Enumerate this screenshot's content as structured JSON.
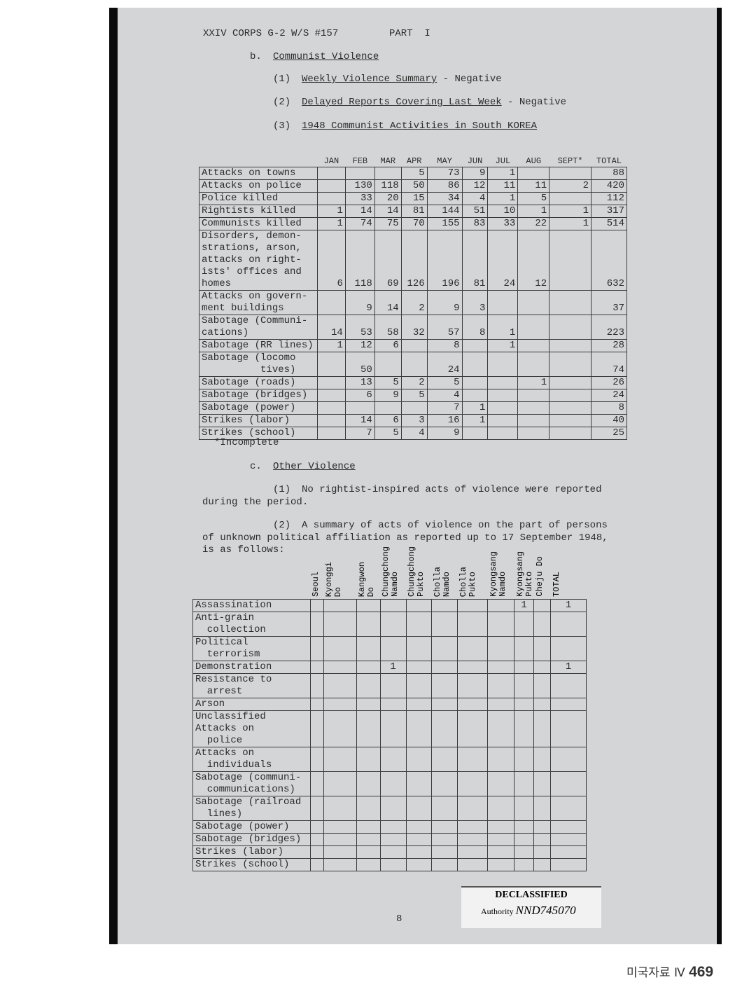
{
  "header": {
    "left": "XXIV CORPS G-2 W/S #157",
    "part": "PART  I"
  },
  "section_b": {
    "title_letter": "b.",
    "title": "Communist Violence",
    "items": [
      {
        "num": "(1)",
        "text": "Weekly Violence Summary",
        "suffix": " - Negative"
      },
      {
        "num": "(2)",
        "text": "Delayed Reports Covering Last Week",
        "suffix": " - Negative"
      },
      {
        "num": "(3)",
        "text": "1948 Communist Activities in South KOREA",
        "suffix": ""
      }
    ]
  },
  "table1": {
    "columns": [
      "JAN",
      "FEB",
      "MAR",
      "APR",
      "MAY",
      "JUN",
      "JUL",
      "AUG",
      "SEPT*",
      "TOTAL"
    ],
    "rows": [
      {
        "label": "Attacks on towns",
        "values": [
          "",
          "",
          "",
          "5",
          "73",
          "9",
          "1",
          "",
          "",
          "88"
        ]
      },
      {
        "label": "Attacks on police",
        "values": [
          "",
          "130",
          "118",
          "50",
          "86",
          "12",
          "11",
          "11",
          "2",
          "420"
        ]
      },
      {
        "label": "Police killed",
        "values": [
          "",
          "33",
          "20",
          "15",
          "34",
          "4",
          "1",
          "5",
          "",
          "112"
        ]
      },
      {
        "label": "Rightists killed",
        "values": [
          "1",
          "14",
          "14",
          "81",
          "144",
          "51",
          "10",
          "1",
          "1",
          "317"
        ]
      },
      {
        "label": "Communists killed",
        "values": [
          "1",
          "74",
          "75",
          "70",
          "155",
          "83",
          "33",
          "22",
          "1",
          "514"
        ]
      },
      {
        "label": "Disorders, demon-\nstrations, arson,\nattacks on right-\nists' offices and\nhomes",
        "values": [
          "6",
          "118",
          "69",
          "126",
          "196",
          "81",
          "24",
          "12",
          "",
          "632"
        ]
      },
      {
        "label": "Attacks on govern-\nment buildings",
        "values": [
          "",
          "9",
          "14",
          "2",
          "9",
          "3",
          "",
          "",
          "",
          "37"
        ]
      },
      {
        "label": "Sabotage (Communi-\ncations)",
        "values": [
          "14",
          "53",
          "58",
          "32",
          "57",
          "8",
          "1",
          "",
          "",
          "223"
        ]
      },
      {
        "label": "Sabotage (RR lines)",
        "values": [
          "1",
          "12",
          "6",
          "",
          "8",
          "",
          "1",
          "",
          "",
          "28"
        ]
      },
      {
        "label": "Sabotage (locomo\n          tives)",
        "values": [
          "",
          "50",
          "",
          "",
          "24",
          "",
          "",
          "",
          "",
          "74"
        ]
      },
      {
        "label": "Sabotage (roads)",
        "values": [
          "",
          "13",
          "5",
          "2",
          "5",
          "",
          "",
          "1",
          "",
          "26"
        ]
      },
      {
        "label": "Sabotage (bridges)",
        "values": [
          "",
          "6",
          "9",
          "5",
          "4",
          "",
          "",
          "",
          "",
          "24"
        ]
      },
      {
        "label": "Sabotage (power)",
        "values": [
          "",
          "",
          "",
          "",
          "7",
          "1",
          "",
          "",
          "",
          "8"
        ]
      },
      {
        "label": "Strikes (labor)",
        "values": [
          "",
          "14",
          "6",
          "3",
          "16",
          "1",
          "",
          "",
          "",
          "40"
        ]
      },
      {
        "label": "Strikes (school)",
        "values": [
          "",
          "7",
          "5",
          "4",
          "9",
          "",
          "",
          "",
          "",
          "25"
        ]
      }
    ],
    "footnote": "*Incomplete"
  },
  "section_c": {
    "title_letter": "c.",
    "title": "Other Violence",
    "p1_num": "(1)",
    "p1_a": "No rightist-inspired acts of violence were reported",
    "p1_b": "during the period.",
    "p2_num": "(2)",
    "p2_a": "A summary of acts of violence on the part of persons",
    "p2_b": "of unknown political affiliation as reported up to 17 September 1948,",
    "p2_c": "is as follows:"
  },
  "table2": {
    "columns": [
      "Seoul",
      "Kyonggi\nDo",
      "Kangwon\nDo",
      "Chungchong\nNamdo",
      "Chungchong\nPukto",
      "Cholla\nNamdo",
      "Cholla\nPukto",
      "Kyongsang\nNamdo",
      "Kyongsang\nPukto",
      "Cheju Do",
      "TOTAL"
    ],
    "rows": [
      {
        "label": "Assassination",
        "values": [
          "",
          "",
          "",
          "",
          "",
          "",
          "",
          "",
          "1",
          "",
          "1"
        ]
      },
      {
        "label": "Anti-grain\n  collection",
        "values": [
          "",
          "",
          "",
          "",
          "",
          "",
          "",
          "",
          "",
          "",
          ""
        ]
      },
      {
        "label": "Political\n  terrorism",
        "values": [
          "",
          "",
          "",
          "",
          "",
          "",
          "",
          "",
          "",
          "",
          ""
        ]
      },
      {
        "label": "Demonstration",
        "values": [
          "",
          "",
          "",
          "1",
          "",
          "",
          "",
          "",
          "",
          "",
          "1"
        ]
      },
      {
        "label": "Resistance to\n  arrest",
        "values": [
          "",
          "",
          "",
          "",
          "",
          "",
          "",
          "",
          "",
          "",
          ""
        ]
      },
      {
        "label": "Arson",
        "values": [
          "",
          "",
          "",
          "",
          "",
          "",
          "",
          "",
          "",
          "",
          ""
        ]
      },
      {
        "label": "Unclassified\nAttacks on\n  police",
        "values": [
          "",
          "",
          "",
          "",
          "",
          "",
          "",
          "",
          "",
          "",
          ""
        ]
      },
      {
        "label": "Attacks on\n  individuals",
        "values": [
          "",
          "",
          "",
          "",
          "",
          "",
          "",
          "",
          "",
          "",
          ""
        ]
      },
      {
        "label": "Sabotage (communi-\n  communications)",
        "values": [
          "",
          "",
          "",
          "",
          "",
          "",
          "",
          "",
          "",
          "",
          ""
        ]
      },
      {
        "label": "Sabotage (railroad\n  lines)",
        "values": [
          "",
          "",
          "",
          "",
          "",
          "",
          "",
          "",
          "",
          "",
          ""
        ]
      },
      {
        "label": "Sabotage (power)",
        "values": [
          "",
          "",
          "",
          "",
          "",
          "",
          "",
          "",
          "",
          "",
          ""
        ]
      },
      {
        "label": "Sabotage (bridges)",
        "values": [
          "",
          "",
          "",
          "",
          "",
          "",
          "",
          "",
          "",
          "",
          ""
        ]
      },
      {
        "label": "Strikes (labor)",
        "values": [
          "",
          "",
          "",
          "",
          "",
          "",
          "",
          "",
          "",
          "",
          ""
        ]
      },
      {
        "label": "Strikes (school)",
        "values": [
          "",
          "",
          "",
          "",
          "",
          "",
          "",
          "",
          "",
          "",
          ""
        ]
      }
    ]
  },
  "page_number": "8",
  "stamp": {
    "title": "DECLASSIFIED",
    "authority_label": "Authority",
    "authority_value": "NND745070"
  },
  "footer": {
    "text": "미국자료 Ⅳ",
    "page": "469"
  }
}
